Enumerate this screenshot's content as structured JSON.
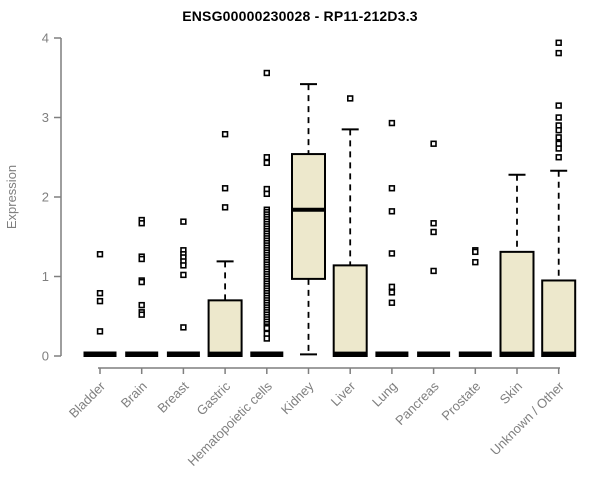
{
  "chart_data": {
    "type": "boxplot",
    "title": "ENSG00000230028 - RP11-212D3.3",
    "ylabel": "Expression",
    "xlabel": "",
    "ylim": [
      0,
      4
    ],
    "yticks": [
      0,
      1,
      2,
      3,
      4
    ],
    "grid": false,
    "legend": null,
    "categories": [
      "Bladder",
      "Brain",
      "Breast",
      "Gastric",
      "Hematopoietic cells",
      "Kidney",
      "Liver",
      "Lung",
      "Pancreas",
      "Prostate",
      "Skin",
      "Unknown / Other"
    ],
    "boxes": [
      {
        "category": "Bladder",
        "low": 0,
        "q1": 0,
        "median": 0,
        "q3": 0,
        "high": 0,
        "outliers": [
          1.28,
          0.79,
          0.69,
          0.31
        ]
      },
      {
        "category": "Brain",
        "low": 0,
        "q1": 0,
        "median": 0,
        "q3": 0,
        "high": 0,
        "outliers": [
          1.71,
          1.67,
          1.25,
          1.22,
          0.95,
          0.93,
          0.64,
          0.55,
          0.52
        ]
      },
      {
        "category": "Breast",
        "low": 0,
        "q1": 0,
        "median": 0,
        "q3": 0,
        "high": 0,
        "outliers": [
          1.69,
          1.33,
          1.28,
          1.24,
          1.19,
          1.14,
          1.02,
          0.36
        ]
      },
      {
        "category": "Gastric",
        "low": 0,
        "q1": 0,
        "median": 0.03,
        "q3": 0.7,
        "high": 1.19,
        "outliers": [
          2.79,
          2.11,
          1.87
        ]
      },
      {
        "category": "Hematopoietic cells",
        "low": 0,
        "q1": 0,
        "median": 0,
        "q3": 0,
        "high": 0,
        "outliers": [
          3.56,
          2.5,
          2.43,
          2.1,
          2.04,
          1.84,
          1.81,
          1.78,
          1.75,
          1.72,
          1.69,
          1.66,
          1.63,
          1.6,
          1.57,
          1.54,
          1.51,
          1.48,
          1.45,
          1.42,
          1.39,
          1.36,
          1.33,
          1.3,
          1.27,
          1.24,
          1.21,
          1.18,
          1.15,
          1.12,
          1.09,
          1.06,
          1.03,
          1.0,
          0.97,
          0.94,
          0.91,
          0.88,
          0.85,
          0.82,
          0.79,
          0.76,
          0.73,
          0.7,
          0.67,
          0.64,
          0.61,
          0.58,
          0.55,
          0.52,
          0.49,
          0.46,
          0.43,
          0.4,
          0.37,
          0.35,
          0.28,
          0.22
        ]
      },
      {
        "category": "Kidney",
        "low": 0.02,
        "q1": 0.97,
        "median": 1.84,
        "q3": 2.54,
        "high": 3.42,
        "outliers": []
      },
      {
        "category": "Liver",
        "low": 0,
        "q1": 0,
        "median": 0.03,
        "q3": 1.14,
        "high": 2.85,
        "outliers": [
          3.24
        ]
      },
      {
        "category": "Lung",
        "low": 0,
        "q1": 0,
        "median": 0,
        "q3": 0,
        "high": 0,
        "outliers": [
          2.93,
          2.11,
          1.82,
          1.29,
          0.87,
          0.8,
          0.67
        ]
      },
      {
        "category": "Pancreas",
        "low": 0,
        "q1": 0,
        "median": 0,
        "q3": 0,
        "high": 0,
        "outliers": [
          2.67,
          1.67,
          1.56,
          1.07
        ]
      },
      {
        "category": "Prostate",
        "low": 0,
        "q1": 0,
        "median": 0,
        "q3": 0,
        "high": 0,
        "outliers": [
          1.33,
          1.31,
          1.18
        ]
      },
      {
        "category": "Skin",
        "low": 0,
        "q1": 0,
        "median": 0.03,
        "q3": 1.31,
        "high": 2.28,
        "outliers": []
      },
      {
        "category": "Unknown / Other",
        "low": 0,
        "q1": 0,
        "median": 0.03,
        "q3": 0.95,
        "high": 2.33,
        "outliers": [
          3.94,
          3.81,
          3.15,
          3.0,
          2.9,
          2.84,
          2.75,
          2.67,
          2.61,
          2.5
        ]
      }
    ],
    "style": {
      "box_fill": "#EDE8CC",
      "box_border": "#000000",
      "median_color": "#000000",
      "outlier_color": "#000000",
      "axis_color": "#7F7F7F",
      "title_color": "#000000",
      "background": "#FFFFFF"
    }
  }
}
